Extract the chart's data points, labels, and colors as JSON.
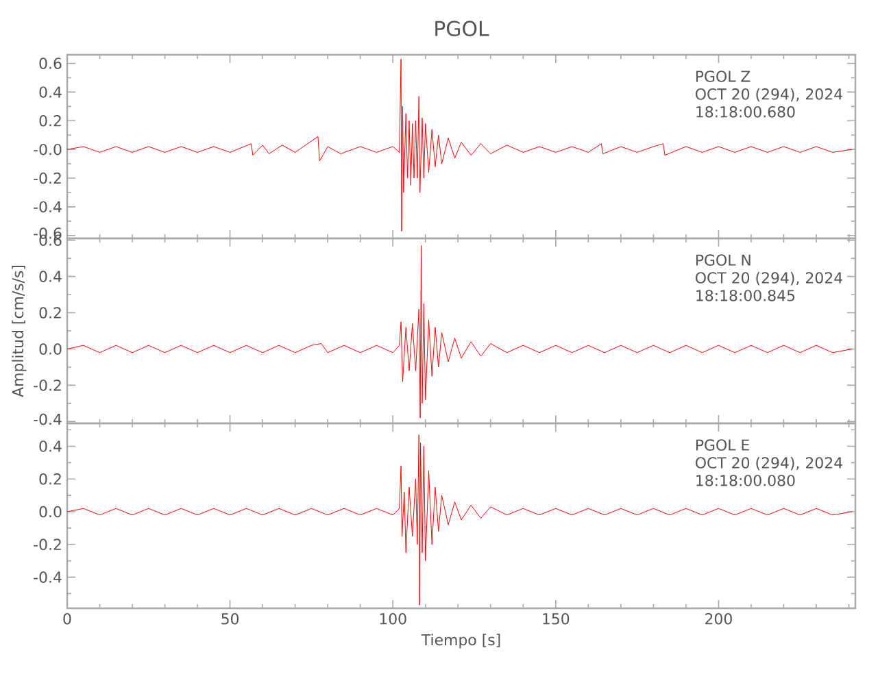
{
  "chart_data": [
    {
      "type": "line",
      "title": "PGOL",
      "annotations": [
        "PGOL   Z",
        "OCT 20 (294), 2024",
        "18:18:00.680"
      ],
      "xlim": [
        0,
        242
      ],
      "ylim": [
        -0.62,
        0.66
      ],
      "tick_labels": "y",
      "xticks": [
        0,
        {
          "value": 10,
          "label": null
        },
        {
          "value": 20,
          "label": null
        },
        {
          "value": 30,
          "label": null
        },
        {
          "value": 40,
          "label": null
        },
        50,
        {
          "value": 60,
          "label": null
        },
        {
          "value": 70,
          "label": null
        },
        {
          "value": 80,
          "label": null
        },
        {
          "value": 90,
          "label": null
        },
        100,
        {
          "value": 110,
          "label": null
        },
        {
          "value": 120,
          "label": null
        },
        {
          "value": 130,
          "label": null
        },
        {
          "value": 140,
          "label": null
        },
        150,
        {
          "value": 160,
          "label": null
        },
        {
          "value": 170,
          "label": null
        },
        {
          "value": 180,
          "label": null
        },
        {
          "value": 190,
          "label": null
        },
        200,
        {
          "value": 210,
          "label": null
        },
        {
          "value": 220,
          "label": null
        },
        {
          "value": 230,
          "label": null
        },
        {
          "value": 240,
          "label": null
        }
      ],
      "yticks": [
        -0.6,
        {
          "value": -0.5,
          "label": null
        },
        -0.4,
        {
          "value": -0.3,
          "label": null
        },
        -0.2,
        {
          "value": -0.1,
          "label": null
        },
        {
          "value": 0,
          "label": "-0.0"
        },
        {
          "value": 0.1,
          "label": null
        },
        0.2,
        {
          "value": 0.3,
          "label": null
        },
        0.4,
        {
          "value": 0.5,
          "label": null
        },
        0.6
      ],
      "series": [
        {
          "color": "#ff0000",
          "x": [
            0,
            5,
            10,
            15,
            20,
            25,
            30,
            35,
            40,
            45,
            50,
            56.5,
            57,
            60,
            62,
            66,
            70,
            77,
            77.5,
            80,
            84,
            90,
            95,
            100,
            102,
            102.5,
            102.7,
            103,
            103.3,
            104,
            104.5,
            105,
            105.5,
            106,
            106.5,
            107,
            107.5,
            108,
            108.3,
            109,
            109.5,
            110,
            111,
            112,
            113,
            114,
            115,
            117,
            119,
            121,
            124,
            127,
            130,
            135,
            140,
            145,
            150,
            155,
            160,
            164,
            164.5,
            170,
            175,
            180,
            183,
            183.5,
            190,
            195,
            200,
            205,
            210,
            215,
            220,
            225,
            230,
            235,
            241
          ],
          "values": [
            0,
            0.02,
            -0.02,
            0.02,
            -0.02,
            0.02,
            -0.02,
            0.02,
            -0.02,
            0.02,
            -0.02,
            0.04,
            -0.04,
            0.03,
            -0.03,
            0.03,
            -0.02,
            0.09,
            -0.08,
            0.02,
            -0.03,
            0.02,
            -0.02,
            0.02,
            -0.02,
            0.63,
            -0.57,
            0.3,
            -0.3,
            0.25,
            -0.2,
            0.2,
            -0.25,
            0.18,
            -0.2,
            0.2,
            -0.2,
            0.37,
            -0.3,
            0.22,
            -0.2,
            0.18,
            -0.16,
            0.14,
            -0.12,
            0.1,
            -0.1,
            0.08,
            -0.06,
            0.05,
            -0.04,
            0.04,
            -0.03,
            0.03,
            -0.02,
            0.02,
            -0.02,
            0.02,
            -0.02,
            0.04,
            -0.03,
            0.02,
            -0.02,
            0.02,
            0.04,
            -0.04,
            0.02,
            -0.02,
            0.02,
            -0.02,
            0.02,
            -0.02,
            0.02,
            -0.02,
            0.02,
            -0.02,
            0
          ]
        }
      ]
    },
    {
      "type": "line",
      "ylabel": "Amplitud [cm/s/s]",
      "annotations": [
        "PGOL   N",
        "OCT 20 (294), 2024",
        "18:18:00.845"
      ],
      "xlim": [
        0,
        242
      ],
      "ylim": [
        -0.41,
        0.61
      ],
      "tick_labels": "y",
      "xticks": [
        0,
        {
          "value": 10,
          "label": null
        },
        {
          "value": 20,
          "label": null
        },
        {
          "value": 30,
          "label": null
        },
        {
          "value": 40,
          "label": null
        },
        50,
        {
          "value": 60,
          "label": null
        },
        {
          "value": 70,
          "label": null
        },
        {
          "value": 80,
          "label": null
        },
        {
          "value": 90,
          "label": null
        },
        100,
        {
          "value": 110,
          "label": null
        },
        {
          "value": 120,
          "label": null
        },
        {
          "value": 130,
          "label": null
        },
        {
          "value": 140,
          "label": null
        },
        150,
        {
          "value": 160,
          "label": null
        },
        {
          "value": 170,
          "label": null
        },
        {
          "value": 180,
          "label": null
        },
        {
          "value": 190,
          "label": null
        },
        200,
        {
          "value": 210,
          "label": null
        },
        {
          "value": 220,
          "label": null
        },
        {
          "value": 230,
          "label": null
        },
        {
          "value": 240,
          "label": null
        }
      ],
      "yticks": [
        -0.4,
        {
          "value": -0.3,
          "label": null
        },
        -0.2,
        {
          "value": -0.1,
          "label": null
        },
        {
          "value": 0,
          "label": "0.0"
        },
        {
          "value": 0.1,
          "label": null
        },
        0.2,
        {
          "value": 0.3,
          "label": null
        },
        0.4,
        {
          "value": 0.5,
          "label": null
        },
        0.6
      ],
      "series": [
        {
          "color": "#ff0000",
          "x": [
            0,
            5,
            10,
            15,
            20,
            25,
            30,
            35,
            40,
            45,
            50,
            55,
            60,
            65,
            70,
            75,
            78,
            80,
            85,
            90,
            95,
            100,
            102,
            102.5,
            103,
            104,
            105,
            106,
            107,
            108,
            108.4,
            108.7,
            109,
            109.5,
            110,
            111,
            112,
            113,
            114,
            115,
            117,
            119,
            121,
            124,
            127,
            130,
            135,
            140,
            145,
            150,
            155,
            160,
            165,
            170,
            175,
            180,
            185,
            190,
            195,
            200,
            205,
            210,
            215,
            220,
            225,
            230,
            235,
            241
          ],
          "values": [
            0,
            0.02,
            -0.02,
            0.02,
            -0.02,
            0.02,
            -0.02,
            0.02,
            -0.02,
            0.02,
            -0.02,
            0.02,
            -0.02,
            0.02,
            -0.02,
            0.02,
            0.03,
            -0.02,
            0.02,
            -0.02,
            0.02,
            -0.02,
            0.02,
            0.15,
            -0.18,
            0.12,
            -0.12,
            0.14,
            -0.12,
            0.22,
            -0.38,
            0.57,
            -0.3,
            0.25,
            -0.28,
            0.16,
            -0.15,
            0.12,
            -0.1,
            0.09,
            -0.07,
            0.06,
            -0.05,
            0.04,
            -0.04,
            0.03,
            -0.02,
            0.02,
            -0.02,
            0.02,
            -0.02,
            0.02,
            -0.02,
            0.02,
            -0.02,
            0.02,
            -0.02,
            0.02,
            -0.02,
            0.02,
            -0.02,
            0.02,
            -0.02,
            0.02,
            -0.02,
            0.02,
            -0.02,
            0
          ]
        }
      ]
    },
    {
      "type": "line",
      "xlabel": "Tiempo [s]",
      "annotations": [
        "PGOL   E",
        "OCT 20 (294), 2024",
        "18:18:00.080"
      ],
      "xlim": [
        0,
        242
      ],
      "ylim": [
        -0.59,
        0.54
      ],
      "xticks": [
        0,
        {
          "value": 10,
          "label": null
        },
        {
          "value": 20,
          "label": null
        },
        {
          "value": 30,
          "label": null
        },
        {
          "value": 40,
          "label": null
        },
        50,
        {
          "value": 60,
          "label": null
        },
        {
          "value": 70,
          "label": null
        },
        {
          "value": 80,
          "label": null
        },
        {
          "value": 90,
          "label": null
        },
        100,
        {
          "value": 110,
          "label": null
        },
        {
          "value": 120,
          "label": null
        },
        {
          "value": 130,
          "label": null
        },
        {
          "value": 140,
          "label": null
        },
        150,
        {
          "value": 160,
          "label": null
        },
        {
          "value": 170,
          "label": null
        },
        {
          "value": 180,
          "label": null
        },
        {
          "value": 190,
          "label": null
        },
        200,
        {
          "value": 210,
          "label": null
        },
        {
          "value": 220,
          "label": null
        },
        {
          "value": 230,
          "label": null
        },
        {
          "value": 240,
          "label": null
        }
      ],
      "yticks": [
        {
          "value": -0.5,
          "label": null
        },
        -0.4,
        {
          "value": -0.3,
          "label": null
        },
        -0.2,
        {
          "value": -0.1,
          "label": null
        },
        {
          "value": 0,
          "label": "0.0"
        },
        {
          "value": 0.1,
          "label": null
        },
        0.2,
        {
          "value": 0.3,
          "label": null
        },
        0.4,
        {
          "value": 0.5,
          "label": null
        }
      ],
      "series": [
        {
          "color": "#ff0000",
          "x": [
            0,
            5,
            10,
            15,
            20,
            25,
            30,
            35,
            40,
            45,
            50,
            55,
            60,
            65,
            70,
            75,
            80,
            85,
            90,
            95,
            100,
            102,
            102.5,
            102.8,
            103.5,
            104,
            105,
            106,
            107,
            107.5,
            108,
            108.2,
            108.5,
            109,
            109.5,
            110,
            111,
            112,
            113,
            114,
            115,
            117,
            119,
            121,
            124,
            127,
            130,
            135,
            140,
            145,
            150,
            155,
            160,
            165,
            170,
            175,
            180,
            185,
            190,
            195,
            200,
            205,
            210,
            215,
            220,
            225,
            230,
            235,
            241
          ],
          "values": [
            0,
            0.02,
            -0.02,
            0.02,
            -0.02,
            0.02,
            -0.02,
            0.02,
            -0.02,
            0.02,
            -0.02,
            0.02,
            -0.02,
            0.02,
            -0.02,
            0.02,
            -0.02,
            0.02,
            -0.02,
            0.02,
            -0.02,
            0.02,
            0.28,
            -0.15,
            0.12,
            -0.25,
            0.15,
            -0.15,
            0.2,
            -0.2,
            0.47,
            -0.57,
            0.42,
            -0.25,
            0.4,
            -0.3,
            0.25,
            -0.2,
            0.15,
            -0.12,
            0.1,
            -0.08,
            0.06,
            -0.05,
            0.04,
            -0.04,
            0.03,
            -0.02,
            0.02,
            -0.02,
            0.02,
            -0.02,
            0.02,
            -0.02,
            0.02,
            -0.02,
            0.02,
            -0.02,
            0.02,
            -0.02,
            0.02,
            -0.02,
            0.02,
            -0.02,
            0.02,
            -0.02,
            0.02,
            -0.02,
            0
          ]
        }
      ]
    }
  ]
}
